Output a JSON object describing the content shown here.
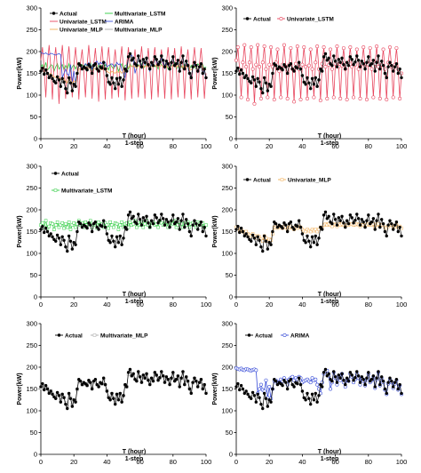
{
  "chart_data": [
    {
      "type": "line",
      "xlabel": "T (hour)",
      "xsublabel": "1-step",
      "ylabel": "Power(kW)",
      "xlim": [
        0,
        100
      ],
      "ylim": [
        0,
        300
      ],
      "xticks": [
        0,
        20,
        40,
        60,
        80,
        100
      ],
      "yticks": [
        0,
        50,
        100,
        150,
        200,
        250,
        300
      ],
      "legend": {
        "placement": "top",
        "entries": [
          "Actual",
          "Multivariate_LSTM",
          "Univariate_LSTM",
          "ARIMA",
          "Univariate_MLP",
          "Multivariate_MLP"
        ]
      },
      "series": [
        {
          "name": "Actual",
          "key": "actual",
          "color": "#000000",
          "marker": "circle"
        },
        {
          "name": "Multivariate_LSTM",
          "key": "mv_lstm",
          "color": "#2ecc40",
          "marker": "none"
        },
        {
          "name": "Univariate_LSTM",
          "key": "uv_lstm",
          "color": "#e8475f",
          "marker": "none"
        },
        {
          "name": "ARIMA",
          "key": "arima",
          "color": "#3b4fd8",
          "marker": "none"
        },
        {
          "name": "Univariate_MLP",
          "key": "uv_mlp",
          "color": "#f2b05a",
          "marker": "none"
        },
        {
          "name": "Multivariate_MLP",
          "key": "mv_mlp",
          "color": "#aaaaaa",
          "marker": "none"
        }
      ]
    },
    {
      "type": "line",
      "xlabel": "T (hour)",
      "xsublabel": "1-step",
      "ylabel": "Power(kW)",
      "xlim": [
        0,
        100
      ],
      "ylim": [
        0,
        300
      ],
      "xticks": [
        0,
        20,
        40,
        60,
        80,
        100
      ],
      "yticks": [
        0,
        50,
        100,
        150,
        200,
        250,
        300
      ],
      "legend": {
        "placement": "top",
        "entries": [
          "Actual",
          "Univariate_LSTM"
        ]
      },
      "series": [
        {
          "name": "Actual",
          "key": "actual",
          "color": "#000000",
          "marker": "circle"
        },
        {
          "name": "Univariate_LSTM",
          "key": "uv_lstm",
          "color": "#e8475f",
          "marker": "open-circle"
        }
      ]
    },
    {
      "type": "line",
      "xlabel": "T (hour)",
      "xsublabel": "1-step",
      "ylabel": "Power(kW)",
      "xlim": [
        0,
        100
      ],
      "ylim": [
        0,
        300
      ],
      "xticks": [
        0,
        20,
        40,
        60,
        80,
        100
      ],
      "yticks": [
        0,
        50,
        100,
        150,
        200,
        250,
        300
      ],
      "legend": {
        "placement": "top-left",
        "entries": [
          "Actual",
          "Multivariate_LSTM"
        ]
      },
      "series": [
        {
          "name": "Actual",
          "key": "actual",
          "color": "#000000",
          "marker": "circle"
        },
        {
          "name": "Multivariate_LSTM",
          "key": "mv_lstm",
          "color": "#2ecc40",
          "marker": "open-square"
        }
      ]
    },
    {
      "type": "line",
      "xlabel": "T (hour)",
      "xsublabel": "1-step",
      "ylabel": "Power(kW)",
      "xlim": [
        0,
        100
      ],
      "ylim": [
        0,
        300
      ],
      "xticks": [
        0,
        20,
        40,
        60,
        80,
        100
      ],
      "yticks": [
        0,
        50,
        100,
        150,
        200,
        250,
        300
      ],
      "legend": {
        "placement": "top",
        "entries": [
          "Actual",
          "Univariate_MLP"
        ]
      },
      "series": [
        {
          "name": "Actual",
          "key": "actual",
          "color": "#000000",
          "marker": "circle"
        },
        {
          "name": "Univariate_MLP",
          "key": "uv_mlp",
          "color": "#f2b05a",
          "marker": "open-square"
        }
      ]
    },
    {
      "type": "line",
      "xlabel": "T (hour)",
      "xsublabel": "1-step",
      "ylabel": "Power(kW)",
      "xlim": [
        0,
        100
      ],
      "ylim": [
        0,
        300
      ],
      "xticks": [
        0,
        20,
        40,
        60,
        80,
        100
      ],
      "yticks": [
        0,
        50,
        100,
        150,
        200,
        250,
        300
      ],
      "legend": {
        "placement": "top",
        "entries": [
          "Actual",
          "Multivariate_MLP"
        ]
      },
      "series": [
        {
          "name": "Actual",
          "key": "actual",
          "color": "#000000",
          "marker": "circle"
        },
        {
          "name": "Multivariate_MLP",
          "key": "mv_mlp",
          "color": "#aaaaaa",
          "marker": "open-square"
        }
      ]
    },
    {
      "type": "line",
      "xlabel": "T (hour)",
      "xsublabel": "1-step",
      "ylabel": "Power(kW)",
      "xlim": [
        0,
        100
      ],
      "ylim": [
        0,
        300
      ],
      "xticks": [
        0,
        20,
        40,
        60,
        80,
        100
      ],
      "yticks": [
        0,
        50,
        100,
        150,
        200,
        250,
        300
      ],
      "legend": {
        "placement": "top",
        "entries": [
          "Actual",
          "ARIMA"
        ]
      },
      "series": [
        {
          "name": "Actual",
          "key": "actual",
          "color": "#000000",
          "marker": "circle"
        },
        {
          "name": "ARIMA",
          "key": "arima",
          "color": "#3b4fd8",
          "marker": "open-circle"
        }
      ]
    }
  ],
  "series_values": {
    "x": [
      0,
      1,
      2,
      3,
      4,
      5,
      6,
      7,
      8,
      9,
      10,
      11,
      12,
      13,
      14,
      15,
      16,
      17,
      18,
      19,
      20,
      21,
      22,
      23,
      24,
      25,
      26,
      27,
      28,
      29,
      30,
      31,
      32,
      33,
      34,
      35,
      36,
      37,
      38,
      39,
      40,
      41,
      42,
      43,
      44,
      45,
      46,
      47,
      48,
      49,
      50,
      51,
      52,
      53,
      54,
      55,
      56,
      57,
      58,
      59,
      60,
      61,
      62,
      63,
      64,
      65,
      66,
      67,
      68,
      69,
      70,
      71,
      72,
      73,
      74,
      75,
      76,
      77,
      78,
      79,
      80,
      81,
      82,
      83,
      84,
      85,
      86,
      87,
      88,
      89,
      90,
      91,
      92,
      93,
      94,
      95,
      96,
      97,
      98,
      99,
      100
    ],
    "actual": [
      155,
      162,
      148,
      158,
      150,
      140,
      145,
      138,
      132,
      128,
      142,
      135,
      120,
      138,
      130,
      115,
      105,
      140,
      128,
      110,
      125,
      120,
      150,
      172,
      168,
      160,
      165,
      162,
      158,
      170,
      165,
      150,
      168,
      172,
      160,
      155,
      165,
      162,
      175,
      160,
      145,
      130,
      125,
      140,
      128,
      115,
      138,
      125,
      140,
      120,
      135,
      160,
      155,
      188,
      195,
      180,
      185,
      172,
      168,
      190,
      178,
      165,
      182,
      175,
      185,
      170,
      160,
      175,
      168,
      188,
      182,
      170,
      176,
      190,
      180,
      165,
      178,
      172,
      160,
      175,
      188,
      168,
      172,
      180,
      155,
      175,
      190,
      160,
      178,
      168,
      150,
      140,
      165,
      175,
      168,
      155,
      165,
      172,
      150,
      160,
      140
    ],
    "uv_lstm": [
      180,
      210,
      160,
      95,
      175,
      215,
      165,
      90,
      175,
      210,
      160,
      80,
      170,
      215,
      165,
      92,
      175,
      212,
      160,
      95,
      170,
      210,
      165,
      90,
      175,
      205,
      155,
      95,
      170,
      215,
      165,
      92,
      170,
      208,
      160,
      85,
      172,
      212,
      160,
      90,
      170,
      210,
      165,
      92,
      168,
      205,
      160,
      95,
      175,
      212,
      160,
      88,
      172,
      210,
      165,
      92,
      170,
      205,
      160,
      95,
      172,
      212,
      165,
      92,
      168,
      208,
      160,
      90,
      175,
      210,
      165,
      95,
      170,
      205,
      160,
      92,
      172,
      210,
      165,
      90,
      170,
      208,
      160,
      95,
      172,
      212,
      165,
      92,
      170,
      205,
      160,
      90,
      175,
      210,
      165,
      95,
      170,
      208,
      160,
      92,
      150
    ],
    "mv_lstm": [
      165,
      170,
      160,
      175,
      158,
      162,
      170,
      168,
      155,
      165,
      172,
      160,
      165,
      170,
      158,
      168,
      160,
      172,
      155,
      165,
      170,
      160,
      168,
      175,
      165,
      170,
      160,
      172,
      165,
      168,
      175,
      160,
      165,
      170,
      158,
      172,
      165,
      168,
      160,
      170,
      165,
      158,
      172,
      165,
      160,
      170,
      168,
      155,
      165,
      172,
      160,
      168,
      170,
      160,
      172,
      165,
      168,
      175,
      160,
      170,
      165,
      172,
      160,
      168,
      175,
      165,
      160,
      170,
      172,
      165,
      168,
      160,
      175,
      170,
      165,
      168,
      172,
      160,
      165,
      170,
      168,
      175,
      160,
      165,
      172,
      168,
      160,
      170,
      165,
      172,
      160,
      168,
      170,
      165,
      160,
      172,
      168,
      165,
      170,
      160,
      165
    ],
    "uv_mlp": [
      160,
      158,
      152,
      155,
      150,
      148,
      150,
      145,
      142,
      140,
      145,
      140,
      135,
      140,
      138,
      132,
      128,
      140,
      135,
      128,
      132,
      130,
      145,
      160,
      160,
      158,
      162,
      160,
      158,
      162,
      160,
      155,
      160,
      162,
      158,
      155,
      160,
      158,
      162,
      160,
      155,
      152,
      150,
      155,
      152,
      150,
      155,
      152,
      155,
      150,
      155,
      160,
      158,
      165,
      168,
      165,
      168,
      165,
      162,
      168,
      165,
      162,
      168,
      165,
      168,
      165,
      162,
      165,
      165,
      168,
      168,
      165,
      166,
      168,
      166,
      162,
      166,
      165,
      162,
      165,
      168,
      165,
      165,
      168,
      160,
      165,
      168,
      162,
      166,
      165,
      160,
      158,
      162,
      165,
      165,
      160,
      162,
      165,
      160,
      162,
      158
    ],
    "mv_mlp": [
      152,
      158,
      150,
      155,
      152,
      142,
      146,
      140,
      135,
      130,
      140,
      136,
      124,
      136,
      131,
      118,
      110,
      138,
      130,
      114,
      124,
      122,
      148,
      168,
      166,
      160,
      163,
      161,
      158,
      168,
      164,
      151,
      166,
      170,
      160,
      156,
      164,
      162,
      172,
      160,
      147,
      133,
      128,
      139,
      130,
      118,
      136,
      127,
      139,
      122,
      134,
      158,
      155,
      184,
      192,
      180,
      183,
      173,
      169,
      188,
      177,
      166,
      180,
      175,
      183,
      171,
      162,
      174,
      169,
      186,
      181,
      171,
      175,
      188,
      180,
      166,
      177,
      172,
      162,
      174,
      186,
      169,
      172,
      179,
      157,
      174,
      188,
      161,
      177,
      168,
      152,
      142,
      164,
      174,
      168,
      156,
      165,
      171,
      152,
      159,
      142
    ],
    "arima": [
      198,
      196,
      195,
      197,
      194,
      193,
      196,
      195,
      193,
      192,
      194,
      195,
      193,
      140,
      150,
      160,
      148,
      145,
      170,
      130,
      155,
      128,
      150,
      168,
      170,
      162,
      166,
      172,
      168,
      175,
      170,
      160,
      172,
      175,
      178,
      170,
      175,
      172,
      178,
      175,
      165,
      168,
      170,
      172,
      168,
      165,
      175,
      170,
      172,
      160,
      150,
      140,
      165,
      185,
      190,
      192,
      180,
      150,
      165,
      188,
      175,
      160,
      180,
      170,
      185,
      165,
      155,
      172,
      168,
      185,
      178,
      165,
      172,
      185,
      175,
      160,
      175,
      168,
      158,
      172,
      185,
      165,
      170,
      178,
      152,
      172,
      188,
      158,
      175,
      165,
      148,
      138,
      162,
      172,
      165,
      152,
      162,
      170,
      148,
      158,
      138
    ]
  }
}
